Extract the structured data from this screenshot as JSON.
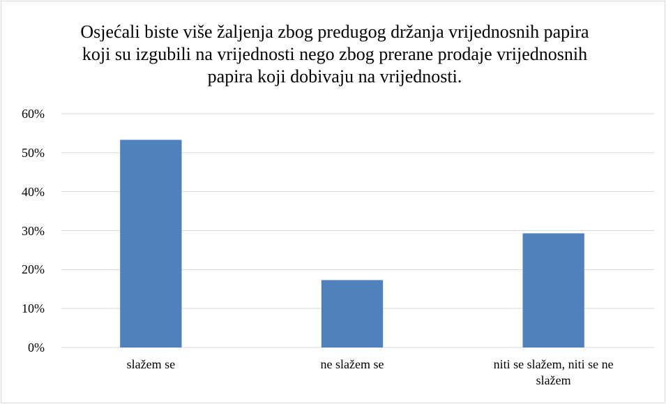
{
  "chart_data": {
    "type": "bar",
    "title": "Osjećali biste više žaljenja zbog predugog držanja vrijednosnih papira koji su izgubili na vrijednosti nego zbog prerane prodaje vrijednosnih papira koji dobivaju na vrijednosti.",
    "categories": [
      "slažem se",
      "ne slažem se",
      "niti se slažem, niti se ne slažem"
    ],
    "values": [
      53.3,
      17.3,
      29.3
    ],
    "color": "#4f81bd",
    "ylim": [
      0,
      60
    ],
    "yticks": [
      {
        "value": 0,
        "label": "0%"
      },
      {
        "value": 10,
        "label": "10%"
      },
      {
        "value": 20,
        "label": "20%"
      },
      {
        "value": 30,
        "label": "30%"
      },
      {
        "value": 40,
        "label": "40%"
      },
      {
        "value": 50,
        "label": "50%"
      },
      {
        "value": 60,
        "label": "60%"
      }
    ],
    "grid": true
  }
}
